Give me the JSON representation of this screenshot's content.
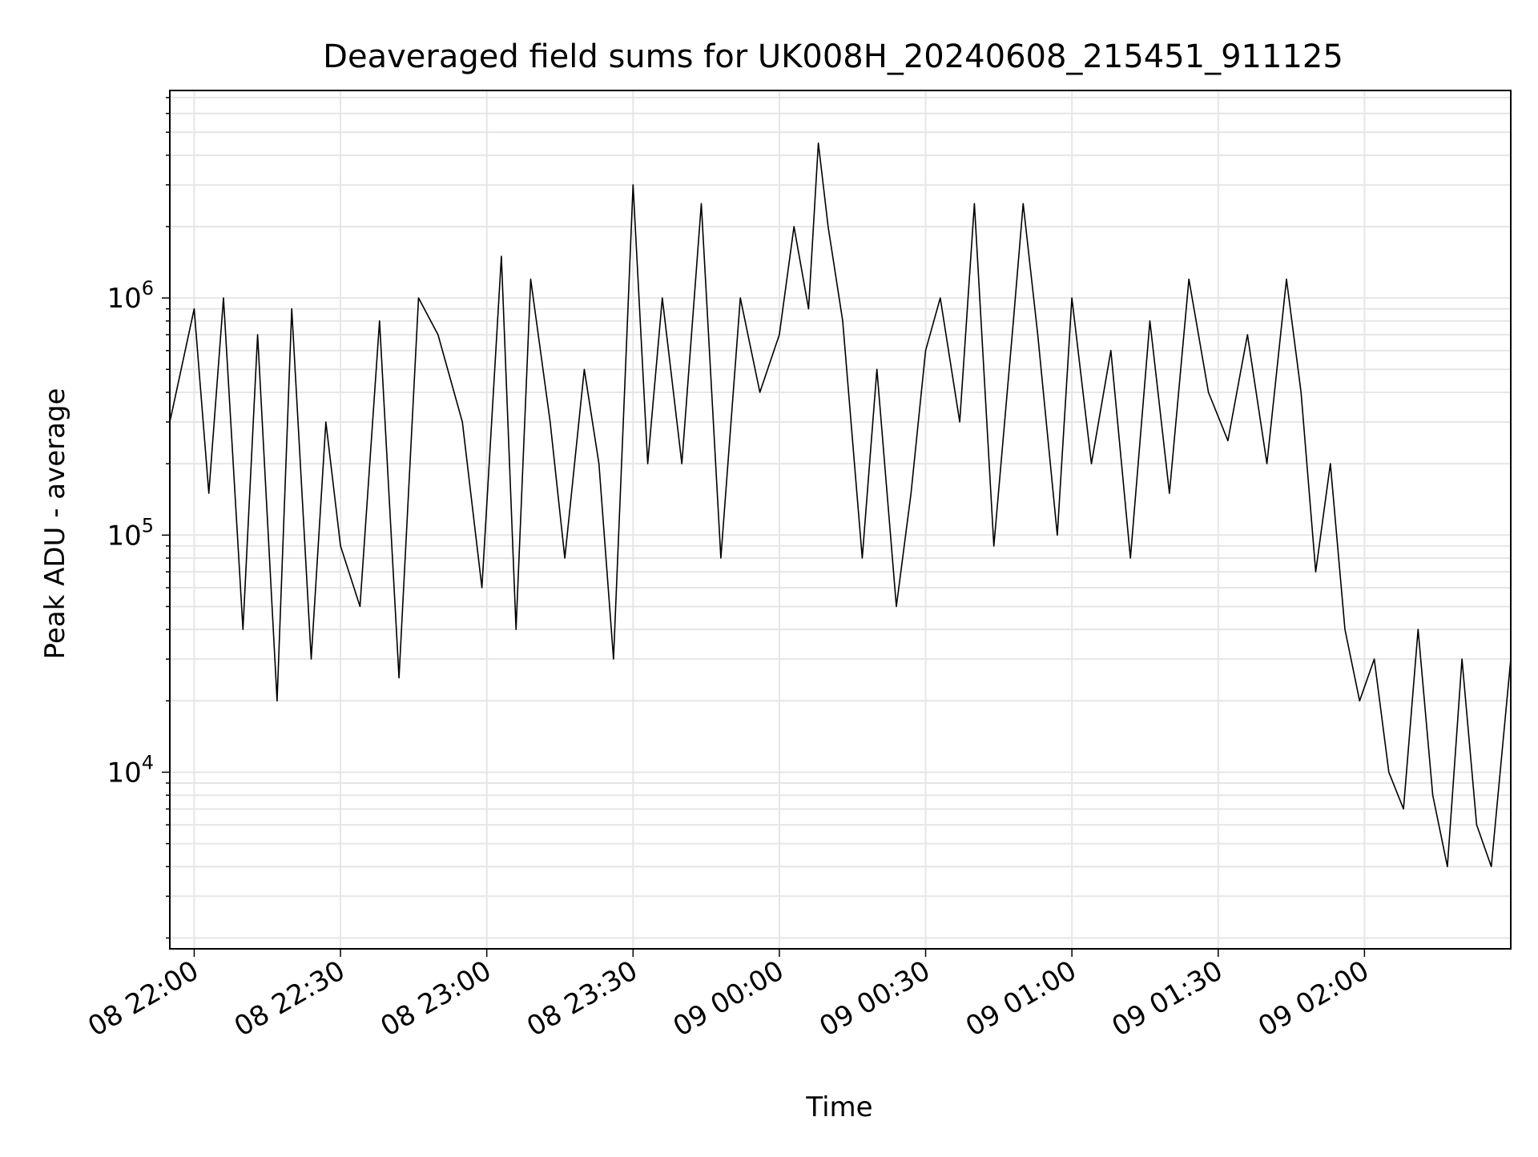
{
  "chart_data": {
    "type": "line",
    "title": "Deaveraged field sums for UK008H_20240608_215451_911125",
    "xlabel": "Time",
    "ylabel": "Peak ADU - average",
    "yscale": "log",
    "ylim": [
      1800,
      7500000
    ],
    "xlim": [
      "2024-06-08 21:55",
      "2024-06-09 02:30"
    ],
    "grid": true,
    "x_tick_labels": [
      "08 22:00",
      "08 22:30",
      "08 23:00",
      "08 23:30",
      "09 00:00",
      "09 00:30",
      "09 01:00",
      "09 01:30",
      "09 02:00"
    ],
    "x_ticks": [
      "2024-06-08 22:00",
      "2024-06-08 22:30",
      "2024-06-08 23:00",
      "2024-06-08 23:30",
      "2024-06-09 00:00",
      "2024-06-09 00:30",
      "2024-06-09 01:00",
      "2024-06-09 01:30",
      "2024-06-09 02:00"
    ],
    "y_ticks": [
      {
        "value": 10000,
        "base": "10",
        "exp": "4"
      },
      {
        "value": 100000,
        "base": "10",
        "exp": "5"
      },
      {
        "value": 1000000,
        "base": "10",
        "exp": "6"
      }
    ],
    "series": [
      {
        "color": "#000000",
        "x": [
          "2024-06-08 21:55",
          "2024-06-08 22:00",
          "2024-06-08 22:03",
          "2024-06-08 22:06",
          "2024-06-08 22:10",
          "2024-06-08 22:13",
          "2024-06-08 22:17",
          "2024-06-08 22:20",
          "2024-06-08 22:24",
          "2024-06-08 22:27",
          "2024-06-08 22:30",
          "2024-06-08 22:34",
          "2024-06-08 22:38",
          "2024-06-08 22:42",
          "2024-06-08 22:46",
          "2024-06-08 22:50",
          "2024-06-08 22:55",
          "2024-06-08 22:59",
          "2024-06-08 23:03",
          "2024-06-08 23:06",
          "2024-06-08 23:09",
          "2024-06-08 23:13",
          "2024-06-08 23:16",
          "2024-06-08 23:20",
          "2024-06-08 23:23",
          "2024-06-08 23:26",
          "2024-06-08 23:30",
          "2024-06-08 23:33",
          "2024-06-08 23:36",
          "2024-06-08 23:40",
          "2024-06-08 23:44",
          "2024-06-08 23:48",
          "2024-06-08 23:52",
          "2024-06-08 23:56",
          "2024-06-09 00:00",
          "2024-06-09 00:03",
          "2024-06-09 00:06",
          "2024-06-09 00:08",
          "2024-06-09 00:10",
          "2024-06-09 00:13",
          "2024-06-09 00:17",
          "2024-06-09 00:20",
          "2024-06-09 00:24",
          "2024-06-09 00:27",
          "2024-06-09 00:30",
          "2024-06-09 00:33",
          "2024-06-09 00:37",
          "2024-06-09 00:40",
          "2024-06-09 00:44",
          "2024-06-09 00:48",
          "2024-06-09 00:50",
          "2024-06-09 00:53",
          "2024-06-09 00:57",
          "2024-06-09 01:00",
          "2024-06-09 01:04",
          "2024-06-09 01:08",
          "2024-06-09 01:12",
          "2024-06-09 01:16",
          "2024-06-09 01:20",
          "2024-06-09 01:24",
          "2024-06-09 01:28",
          "2024-06-09 01:32",
          "2024-06-09 01:36",
          "2024-06-09 01:40",
          "2024-06-09 01:44",
          "2024-06-09 01:47",
          "2024-06-09 01:50",
          "2024-06-09 01:53",
          "2024-06-09 01:56",
          "2024-06-09 01:59",
          "2024-06-09 02:02",
          "2024-06-09 02:05",
          "2024-06-09 02:08",
          "2024-06-09 02:11",
          "2024-06-09 02:14",
          "2024-06-09 02:17",
          "2024-06-09 02:20",
          "2024-06-09 02:23",
          "2024-06-09 02:26",
          "2024-06-09 02:30"
        ],
        "y": [
          300000,
          900000,
          150000,
          1000000,
          40000,
          700000,
          20000,
          900000,
          30000,
          300000,
          90000,
          50000,
          800000,
          25000,
          1000000,
          700000,
          300000,
          60000,
          1500000,
          40000,
          1200000,
          300000,
          80000,
          500000,
          200000,
          30000,
          3000000,
          200000,
          1000000,
          200000,
          2500000,
          80000,
          1000000,
          400000,
          700000,
          2000000,
          900000,
          4500000,
          2000000,
          800000,
          80000,
          500000,
          50000,
          150000,
          600000,
          1000000,
          300000,
          2500000,
          90000,
          800000,
          2500000,
          700000,
          100000,
          1000000,
          200000,
          600000,
          80000,
          800000,
          150000,
          1200000,
          400000,
          250000,
          700000,
          200000,
          1200000,
          400000,
          70000,
          200000,
          40000,
          20000,
          30000,
          10000,
          7000,
          40000,
          8000,
          4000,
          30000,
          6000,
          4000,
          30000
        ]
      }
    ]
  }
}
